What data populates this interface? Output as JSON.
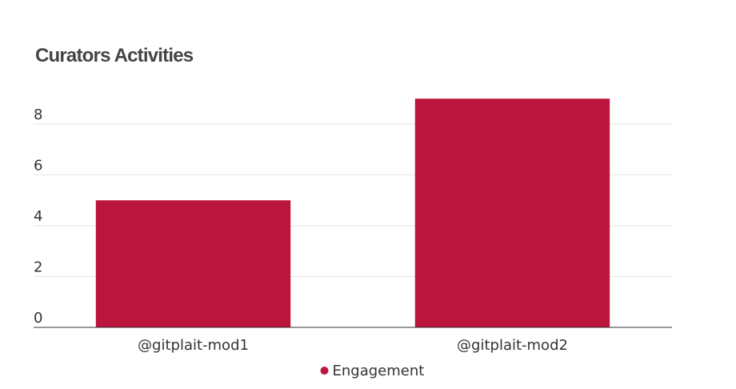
{
  "chart_data": {
    "type": "bar",
    "title": "Curators Activities",
    "categories": [
      "@gitplait-mod1",
      "@gitplait-mod2"
    ],
    "series": [
      {
        "name": "Engagement",
        "values": [
          5,
          9
        ]
      }
    ],
    "ylim": [
      0,
      9
    ],
    "yticks": [
      0,
      2,
      4,
      6,
      8
    ],
    "grid": true,
    "legend_position": "bottom-center",
    "colors": {
      "bar": "#BC153D",
      "grid": "#e6e6e6",
      "axis": "#333333"
    }
  }
}
